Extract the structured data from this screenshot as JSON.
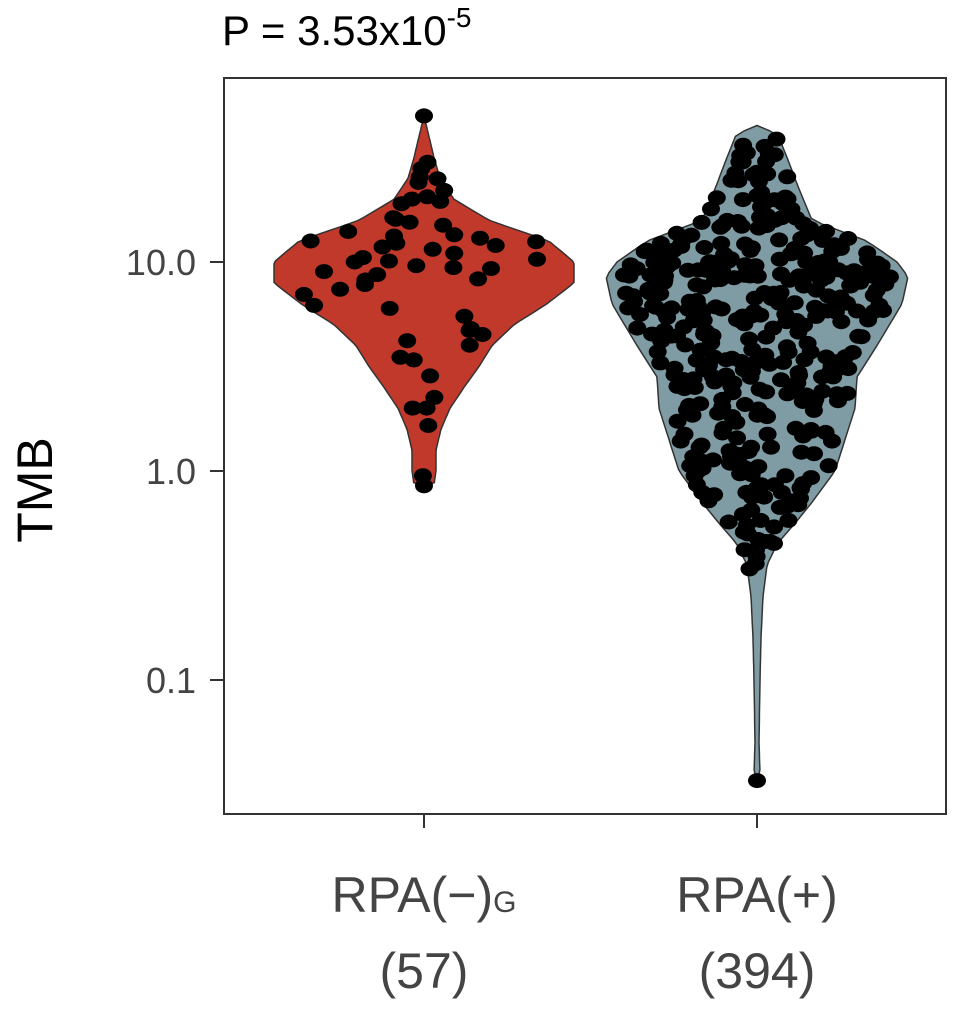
{
  "chart_data": {
    "type": "violin",
    "title_prefix": "P =  3.53x10",
    "title_exponent": "-5",
    "ylabel": "TMB",
    "yscale": "log",
    "ylim": [
      0.045,
      60
    ],
    "yticks": [
      {
        "value": 0.1,
        "label": "0.1"
      },
      {
        "value": 1.0,
        "label": "1.0"
      },
      {
        "value": 10.0,
        "label": "10.0"
      }
    ],
    "grid": false,
    "groups": [
      {
        "label": "RPA(−)",
        "label_sub": "G",
        "count_label": "(57)",
        "n": 57,
        "color": "#C0392B",
        "ymin": 0.85,
        "ymax": 50,
        "points": [
          0.85,
          0.95,
          1.65,
          2.0,
          2.0,
          2.25,
          2.85,
          3.4,
          3.5,
          4.0,
          4.2,
          4.5,
          4.7,
          4.8,
          5.5,
          6.0,
          6.2,
          7.0,
          7.4,
          7.8,
          8.2,
          8.3,
          8.7,
          9.0,
          9.3,
          9.4,
          9.6,
          10.0,
          10.1,
          10.3,
          10.5,
          11.0,
          11.5,
          11.8,
          12.0,
          12.3,
          12.5,
          12.6,
          13.0,
          13.3,
          13.5,
          14.0,
          15.0,
          15.5,
          16.0,
          16.3,
          19.0,
          19.5,
          20.0,
          20.5,
          22.0,
          24.0,
          25.0,
          25.5,
          28.0,
          30.0,
          50.0
        ]
      },
      {
        "label": "RPA(+)",
        "label_sub": "",
        "count_label": "(394)",
        "n": 394,
        "color": "#7F9BA3",
        "ymin": 0.033,
        "ymax": 45,
        "points": []
      }
    ]
  }
}
